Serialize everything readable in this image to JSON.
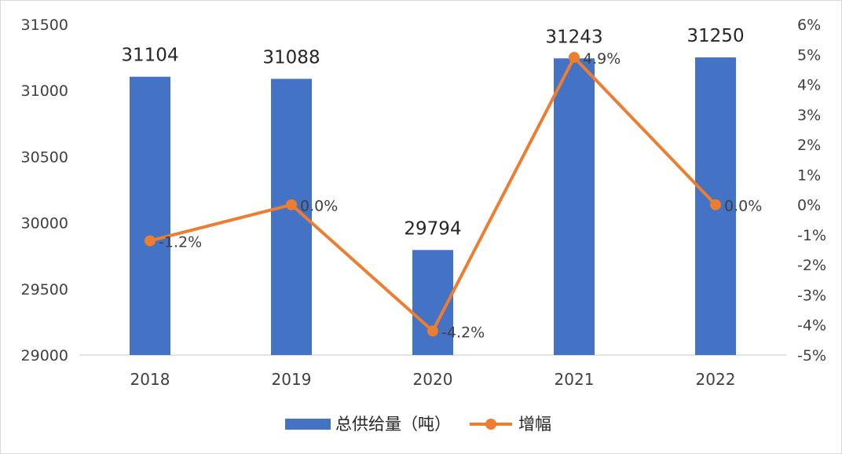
{
  "chart_data": {
    "type": "bar",
    "categories": [
      "2018",
      "2019",
      "2020",
      "2021",
      "2022"
    ],
    "series": [
      {
        "name": "总供给量（吨）",
        "kind": "bar",
        "axis": "left",
        "color": "#4472C4",
        "values": [
          31104,
          31088,
          29794,
          31243,
          31250
        ],
        "labels": [
          "31104",
          "31088",
          "29794",
          "31243",
          "31250"
        ]
      },
      {
        "name": "增幅",
        "kind": "line",
        "axis": "right",
        "color": "#ED7D31",
        "values": [
          -1.2,
          0.0,
          -4.2,
          4.9,
          0.0
        ],
        "labels": [
          "-1.2%",
          "0.0%",
          "-4.2%",
          "4.9%",
          "0.0%"
        ]
      }
    ],
    "left_axis": {
      "ylim": [
        29000,
        31500
      ],
      "ticks": [
        "29000",
        "29500",
        "30000",
        "30500",
        "31000",
        "31500"
      ]
    },
    "right_axis": {
      "ylim": [
        -5,
        6
      ],
      "ticks": [
        "-5%",
        "-4%",
        "-3%",
        "-2%",
        "-1%",
        "0%",
        "1%",
        "2%",
        "3%",
        "4%",
        "5%",
        "6%"
      ]
    },
    "grid": false,
    "legend": "bottom"
  }
}
